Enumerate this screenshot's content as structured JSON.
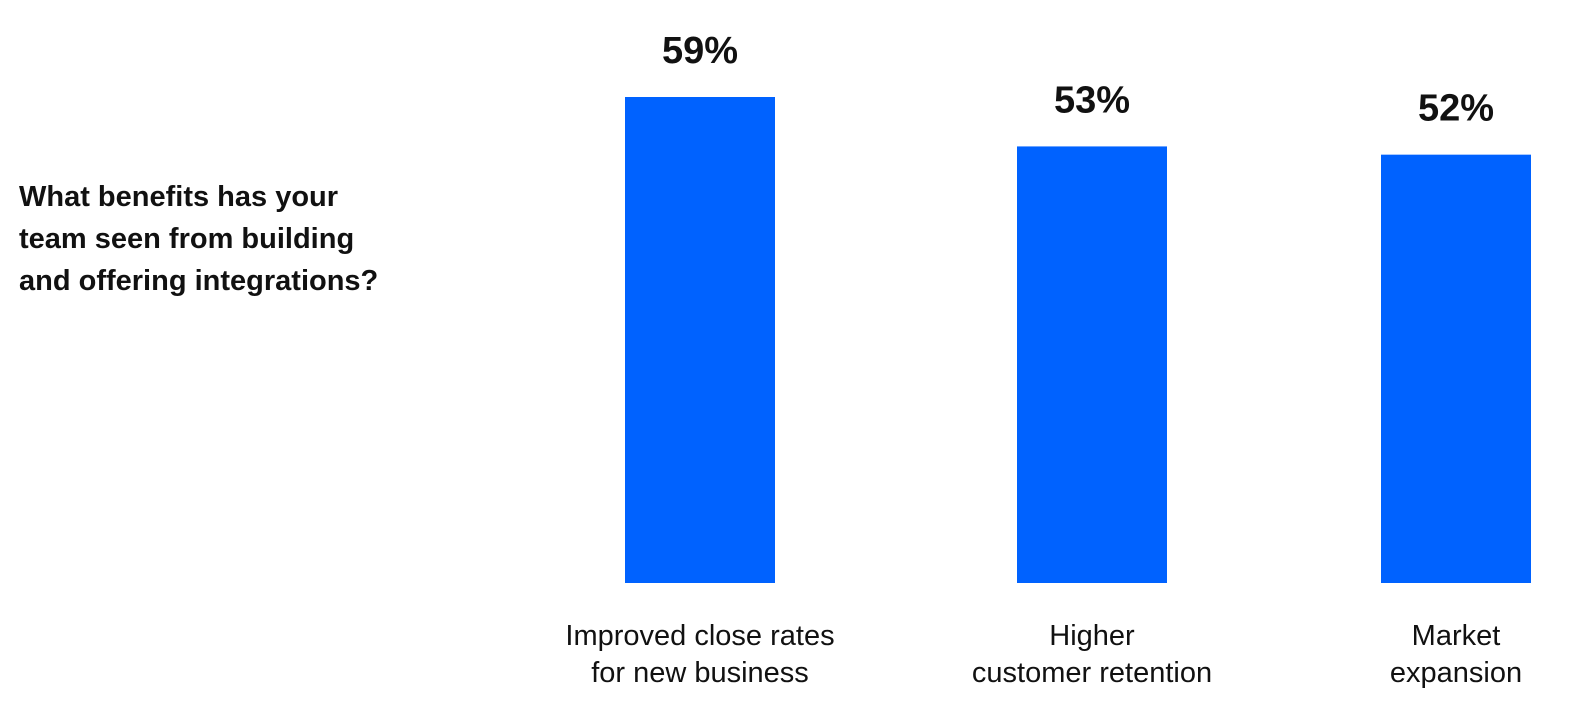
{
  "question": {
    "line1": "What benefits has your",
    "line2": "team seen from building",
    "line3": "and offering integrations?"
  },
  "colors": {
    "bar": "#0062ff",
    "text": "#111111",
    "background": "#ffffff"
  },
  "chart_data": {
    "type": "bar",
    "title": "",
    "xlabel": "",
    "ylabel": "",
    "categories": [
      "Improved close rates for new business",
      "Higher customer retention",
      "Market expansion"
    ],
    "category_lines": [
      [
        "Improved close rates",
        "for new business"
      ],
      [
        "Higher",
        "customer retention"
      ],
      [
        "Market",
        "expansion"
      ]
    ],
    "values": [
      59,
      53,
      52
    ],
    "value_labels": [
      "59%",
      "53%",
      "52%"
    ],
    "unit": "%",
    "ylim": [
      0,
      59
    ],
    "grid": false,
    "legend": "none"
  }
}
